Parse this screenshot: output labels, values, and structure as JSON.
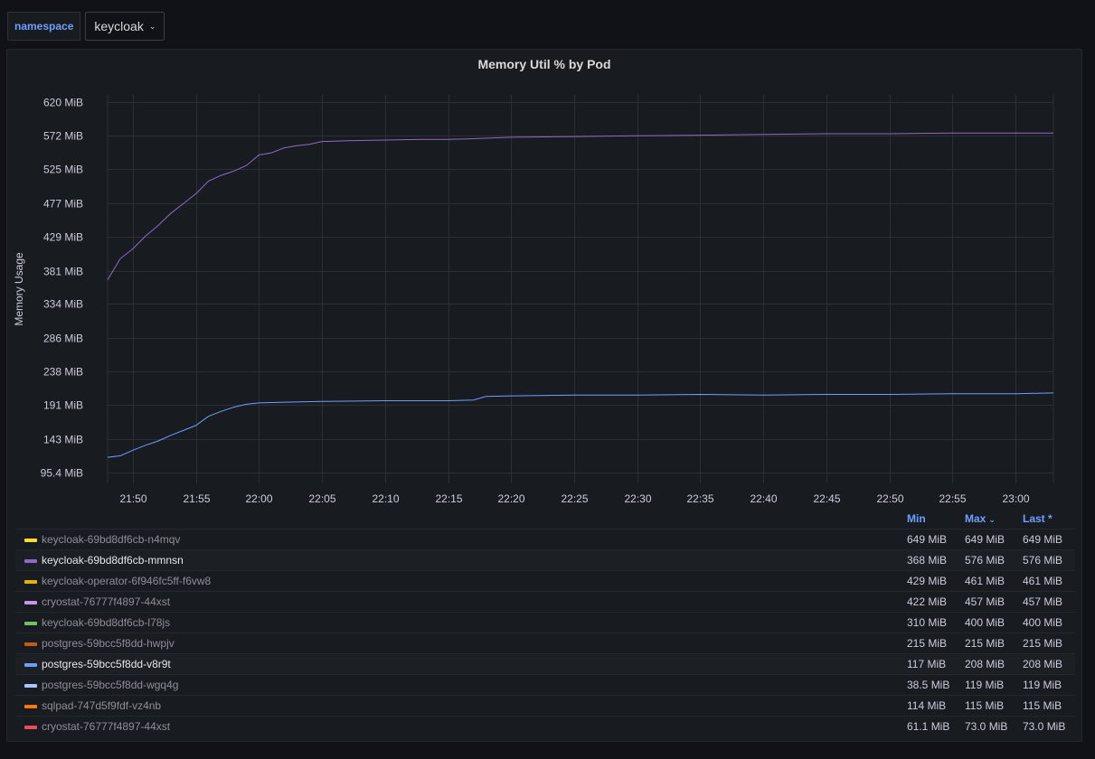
{
  "variables": {
    "namespace_label": "namespace",
    "namespace_value": "keycloak"
  },
  "colors": {
    "background": "#111217",
    "panel": "#181b1f",
    "accent": "#6e9fff",
    "grid": "#2c3035"
  },
  "chart_data": {
    "type": "line",
    "title": "Memory Util % by Pod",
    "ylabel": "Memory Usage",
    "xlabel": "",
    "y_unit": "MiB",
    "ylim": [
      80,
      630
    ],
    "xlim": [
      "21:48",
      "23:03"
    ],
    "y_ticks": [
      "95.4 MiB",
      "143 MiB",
      "191 MiB",
      "238 MiB",
      "286 MiB",
      "334 MiB",
      "381 MiB",
      "429 MiB",
      "477 MiB",
      "525 MiB",
      "572 MiB",
      "620 MiB"
    ],
    "y_tick_values": [
      95.4,
      143,
      191,
      238,
      286,
      334,
      381,
      429,
      477,
      525,
      572,
      620
    ],
    "x_ticks": [
      "21:50",
      "21:55",
      "22:00",
      "22:05",
      "22:10",
      "22:15",
      "22:20",
      "22:25",
      "22:30",
      "22:35",
      "22:40",
      "22:45",
      "22:50",
      "22:55",
      "23:00"
    ],
    "grid": true,
    "legend_position": "bottom",
    "series": [
      {
        "name": "keycloak-69bd8df6cb-mmnsn",
        "color": "#8c6bc8",
        "x": [
          "21:48",
          "21:49",
          "21:50",
          "21:51",
          "21:52",
          "21:53",
          "21:54",
          "21:55",
          "21:56",
          "21:57",
          "21:58",
          "21:59",
          "22:00",
          "22:01",
          "22:02",
          "22:03",
          "22:04",
          "22:05",
          "22:07",
          "22:10",
          "22:13",
          "22:15",
          "22:17",
          "22:20",
          "22:25",
          "22:30",
          "22:35",
          "22:40",
          "22:45",
          "22:50",
          "22:55",
          "23:00",
          "23:03"
        ],
        "values": [
          368,
          398,
          412,
          430,
          445,
          462,
          476,
          490,
          508,
          516,
          522,
          530,
          545,
          548,
          555,
          558,
          560,
          564,
          565,
          566,
          567,
          567,
          568,
          570,
          571,
          572,
          573,
          574,
          575,
          575,
          576,
          576,
          576
        ]
      },
      {
        "name": "postgres-59bcc5f8dd-v8r9t",
        "color": "#6e9fff",
        "x": [
          "21:48",
          "21:49",
          "21:50",
          "21:51",
          "21:52",
          "21:53",
          "21:54",
          "21:55",
          "21:56",
          "21:57",
          "21:58",
          "21:59",
          "22:00",
          "22:02",
          "22:05",
          "22:10",
          "22:15",
          "22:17",
          "22:18",
          "22:20",
          "22:25",
          "22:30",
          "22:35",
          "22:40",
          "22:45",
          "22:50",
          "22:55",
          "23:00",
          "23:03"
        ],
        "values": [
          117,
          119,
          127,
          134,
          140,
          148,
          155,
          162,
          175,
          182,
          188,
          192,
          194,
          195,
          196,
          197,
          197,
          198,
          203,
          204,
          205,
          205,
          206,
          205,
          206,
          206,
          207,
          207,
          208
        ]
      }
    ]
  },
  "legend": {
    "headers": {
      "min": "Min",
      "max": "Max",
      "last": "Last *"
    },
    "sort_icon": "chevron-down-icon",
    "rows": [
      {
        "name": "keycloak-69bd8df6cb-n4mqv",
        "color": "#fade2a",
        "min": "649 MiB",
        "max": "649 MiB",
        "last": "649 MiB"
      },
      {
        "name": "keycloak-69bd8df6cb-mmnsn",
        "color": "#8c6bc8",
        "min": "368 MiB",
        "max": "576 MiB",
        "last": "576 MiB"
      },
      {
        "name": "keycloak-operator-6f946fc5ff-f6vw8",
        "color": "#e0b400",
        "min": "429 MiB",
        "max": "461 MiB",
        "last": "461 MiB"
      },
      {
        "name": "cryostat-76777f4897-44xst",
        "color": "#ca95e5",
        "min": "422 MiB",
        "max": "457 MiB",
        "last": "457 MiB"
      },
      {
        "name": "keycloak-69bd8df6cb-l78js",
        "color": "#73bf69",
        "min": "310 MiB",
        "max": "400 MiB",
        "last": "400 MiB"
      },
      {
        "name": "postgres-59bcc5f8dd-hwpjv",
        "color": "#c15c17",
        "min": "215 MiB",
        "max": "215 MiB",
        "last": "215 MiB"
      },
      {
        "name": "postgres-59bcc5f8dd-v8r9t",
        "color": "#6e9fff",
        "min": "117 MiB",
        "max": "208 MiB",
        "last": "208 MiB"
      },
      {
        "name": "postgres-59bcc5f8dd-wgq4g",
        "color": "#a9c4ff",
        "min": "38.5 MiB",
        "max": "119 MiB",
        "last": "119 MiB"
      },
      {
        "name": "sqlpad-747d5f9fdf-vz4nb",
        "color": "#ff780a",
        "min": "114 MiB",
        "max": "115 MiB",
        "last": "115 MiB"
      },
      {
        "name": "cryostat-76777f4897-44xst",
        "color": "#f2495c",
        "min": "61.1 MiB",
        "max": "73.0 MiB",
        "last": "73.0 MiB"
      }
    ]
  }
}
